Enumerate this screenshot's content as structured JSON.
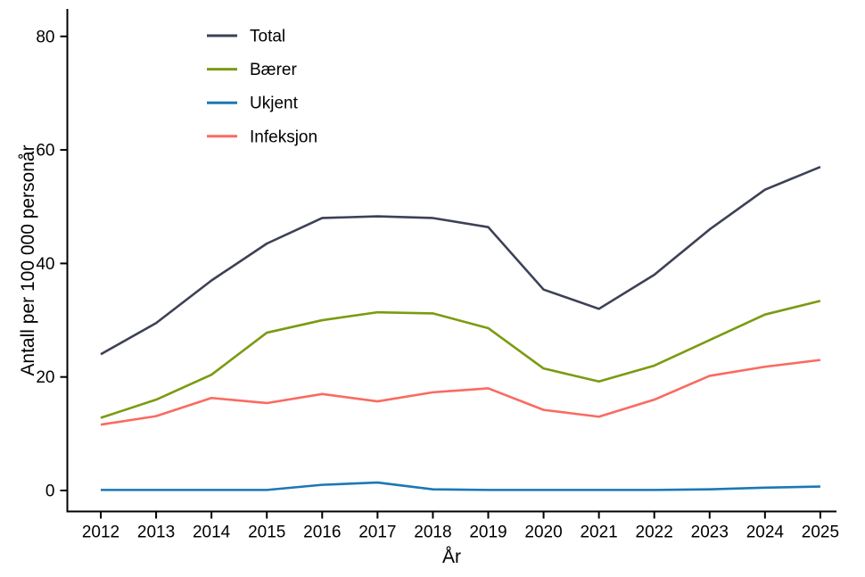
{
  "chart_data": {
    "type": "line",
    "title": "",
    "xlabel": "År",
    "ylabel": "Antall per 100 000 personår",
    "x": [
      2012,
      2013,
      2014,
      2015,
      2016,
      2017,
      2018,
      2019,
      2020,
      2021,
      2022,
      2023,
      2024,
      2025
    ],
    "ylim": [
      0,
      80
    ],
    "yticks": [
      0,
      20,
      40,
      60,
      80
    ],
    "grid": false,
    "legend_position": "top-left-inside",
    "axis_color": "#000000",
    "series": [
      {
        "name": "Total",
        "color": "#3c4156",
        "values": [
          24,
          29.5,
          37,
          43.5,
          48,
          48.3,
          48,
          46.4,
          35.4,
          32,
          38,
          46,
          53,
          57
        ]
      },
      {
        "name": "Bærer",
        "color": "#7a9b10",
        "values": [
          12.8,
          16,
          20.4,
          27.8,
          30,
          31.4,
          31.2,
          28.6,
          21.5,
          19.2,
          22,
          26.5,
          31,
          33.4
        ]
      },
      {
        "name": "Ukjent",
        "color": "#1b78b6",
        "values": [
          0.1,
          0.1,
          0.1,
          0.1,
          1,
          1.4,
          0.2,
          0.1,
          0.1,
          0.1,
          0.1,
          0.2,
          0.5,
          0.7
        ]
      },
      {
        "name": "Infeksjon",
        "color": "#fb6a60",
        "values": [
          11.6,
          13.1,
          16.3,
          15.4,
          17,
          15.7,
          17.3,
          18,
          14.2,
          13,
          16,
          20.2,
          21.8,
          23
        ]
      }
    ]
  }
}
